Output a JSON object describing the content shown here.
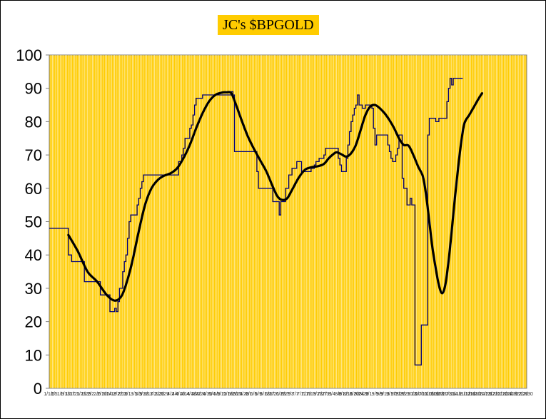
{
  "chart_data": {
    "type": "line",
    "title": "JC's $BPGOLD",
    "xlabel": "",
    "ylabel": "",
    "ylim": [
      0,
      100
    ],
    "yticks": [
      0,
      10,
      20,
      30,
      40,
      50,
      60,
      70,
      80,
      90,
      100
    ],
    "grid": "vertical",
    "legend": "none",
    "n_points": 300,
    "x_tick_labels": [
      "1/1/5",
      "1/5",
      "1/9",
      "1/13",
      "1/17",
      "1/21",
      "1/25",
      "1/29",
      "2/2",
      "2/6",
      "2/10",
      "2/14",
      "2/18",
      "2/22",
      "2/26",
      "3/1",
      "3/5",
      "3/9",
      "3/13",
      "3/17",
      "3/21",
      "3/25",
      "3/29",
      "4/2",
      "4/6",
      "4/10",
      "4/14",
      "4/18",
      "4/22",
      "4/26",
      "4/30",
      "5/4",
      "5/8",
      "5/12",
      "5/16",
      "5/20",
      "5/24",
      "5/28",
      "6/1",
      "6/5",
      "6/9",
      "6/13",
      "6/17",
      "6/21",
      "6/25",
      "6/29",
      "7/3",
      "7/7",
      "7/11",
      "7/15",
      "7/19",
      "7/23",
      "7/27",
      "7/31",
      "8/4",
      "8/8",
      "8/12",
      "8/16",
      "8/20",
      "8/24",
      "8/28",
      "9/1",
      "9/5",
      "9/9",
      "9/13",
      "9/17",
      "9/21",
      "9/25",
      "9/29",
      "10/3",
      "10/7",
      "10/11",
      "10/15",
      "10/19",
      "10/23",
      "10/27",
      "10/31",
      "11/4",
      "11/8",
      "11/12",
      "11/16",
      "11/20",
      "11/24",
      "11/28",
      "12/2",
      "12/6",
      "12/10",
      "12/14",
      "12/18",
      "12/22",
      "12/26",
      "12/30"
    ],
    "series": [
      {
        "color": "#000080",
        "style": "step",
        "points": [
          [
            0,
            48
          ],
          [
            11,
            48
          ],
          [
            12,
            40
          ],
          [
            13,
            40
          ],
          [
            14,
            38
          ],
          [
            21,
            38
          ],
          [
            22,
            32
          ],
          [
            31,
            32
          ],
          [
            32,
            28
          ],
          [
            37,
            28
          ],
          [
            38,
            23
          ],
          [
            40,
            23
          ],
          [
            41,
            24
          ],
          [
            42,
            23
          ],
          [
            43,
            26
          ],
          [
            44,
            30
          ],
          [
            45,
            30
          ],
          [
            46,
            35
          ],
          [
            47,
            38
          ],
          [
            48,
            40
          ],
          [
            49,
            45
          ],
          [
            50,
            50
          ],
          [
            51,
            52
          ],
          [
            54,
            52
          ],
          [
            55,
            55
          ],
          [
            56,
            57
          ],
          [
            57,
            60
          ],
          [
            58,
            62
          ],
          [
            59,
            64
          ],
          [
            80,
            64
          ],
          [
            81,
            68
          ],
          [
            83,
            70
          ],
          [
            84,
            72
          ],
          [
            85,
            75
          ],
          [
            87,
            75
          ],
          [
            88,
            78
          ],
          [
            89,
            79
          ],
          [
            90,
            82
          ],
          [
            91,
            85
          ],
          [
            92,
            87
          ],
          [
            95,
            87
          ],
          [
            96,
            88
          ],
          [
            113,
            88
          ],
          [
            114,
            89
          ],
          [
            115,
            88
          ],
          [
            116,
            71
          ],
          [
            129,
            71
          ],
          [
            130,
            65
          ],
          [
            131,
            60
          ],
          [
            139,
            60
          ],
          [
            140,
            56
          ],
          [
            143,
            56
          ],
          [
            144,
            52
          ],
          [
            145,
            56
          ],
          [
            147,
            56
          ],
          [
            148,
            60
          ],
          [
            149,
            60
          ],
          [
            150,
            64
          ],
          [
            151,
            64
          ],
          [
            152,
            66
          ],
          [
            154,
            66
          ],
          [
            155,
            68
          ],
          [
            157,
            68
          ],
          [
            158,
            65
          ],
          [
            163,
            65
          ],
          [
            164,
            66
          ],
          [
            165,
            66
          ],
          [
            166,
            67
          ],
          [
            167,
            68
          ],
          [
            169,
            69
          ],
          [
            171,
            69
          ],
          [
            172,
            70
          ],
          [
            173,
            72
          ],
          [
            180,
            72
          ],
          [
            181,
            69
          ],
          [
            182,
            67
          ],
          [
            183,
            65
          ],
          [
            185,
            65
          ],
          [
            186,
            69
          ],
          [
            187,
            73
          ],
          [
            188,
            77
          ],
          [
            189,
            80
          ],
          [
            190,
            82
          ],
          [
            191,
            84
          ],
          [
            192,
            85
          ],
          [
            193,
            88
          ],
          [
            194,
            85
          ],
          [
            196,
            84
          ],
          [
            197,
            84
          ],
          [
            198,
            85
          ],
          [
            201,
            85
          ],
          [
            202,
            84
          ],
          [
            203,
            78
          ],
          [
            204,
            73
          ],
          [
            205,
            76
          ],
          [
            211,
            76
          ],
          [
            212,
            73
          ],
          [
            213,
            71
          ],
          [
            214,
            69
          ],
          [
            215,
            68
          ],
          [
            217,
            70
          ],
          [
            218,
            72
          ],
          [
            219,
            76
          ],
          [
            220,
            76
          ],
          [
            221,
            63
          ],
          [
            222,
            60
          ],
          [
            224,
            55
          ],
          [
            225,
            55
          ],
          [
            226,
            57
          ],
          [
            227,
            55
          ],
          [
            229,
            7
          ],
          [
            232,
            7
          ],
          [
            233,
            19
          ],
          [
            236,
            19
          ],
          [
            237,
            76
          ],
          [
            238,
            81
          ],
          [
            241,
            81
          ],
          [
            242,
            80
          ],
          [
            244,
            81
          ],
          [
            248,
            81
          ],
          [
            249,
            86
          ],
          [
            250,
            90
          ],
          [
            251,
            93
          ],
          [
            252,
            91
          ],
          [
            253,
            93
          ],
          [
            259,
            93
          ]
        ]
      },
      {
        "color": "#000000",
        "style": "smooth",
        "points": [
          [
            12,
            46
          ],
          [
            18,
            41
          ],
          [
            24,
            35
          ],
          [
            30,
            32
          ],
          [
            36,
            28
          ],
          [
            41,
            26.3
          ],
          [
            45,
            27.5
          ],
          [
            48,
            31
          ],
          [
            52,
            38
          ],
          [
            56,
            47
          ],
          [
            60,
            55
          ],
          [
            64,
            60
          ],
          [
            68,
            62.5
          ],
          [
            72,
            63.8
          ],
          [
            76,
            64.5
          ],
          [
            80,
            66
          ],
          [
            84,
            69
          ],
          [
            88,
            73
          ],
          [
            92,
            78
          ],
          [
            96,
            82.5
          ],
          [
            100,
            86
          ],
          [
            104,
            88
          ],
          [
            108,
            88.7
          ],
          [
            111,
            88.8
          ],
          [
            114,
            88.5
          ],
          [
            117,
            85
          ],
          [
            120,
            81
          ],
          [
            124,
            76
          ],
          [
            128,
            72
          ],
          [
            132,
            68.5
          ],
          [
            136,
            65
          ],
          [
            140,
            60.5
          ],
          [
            143,
            57.5
          ],
          [
            146,
            56.5
          ],
          [
            149,
            57
          ],
          [
            152,
            59.5
          ],
          [
            156,
            63
          ],
          [
            160,
            65.5
          ],
          [
            164,
            66.3
          ],
          [
            168,
            66.6
          ],
          [
            172,
            67.3
          ],
          [
            175,
            69
          ],
          [
            178,
            70.3
          ],
          [
            180,
            70.8
          ],
          [
            183,
            70.2
          ],
          [
            186,
            69.5
          ],
          [
            189,
            70.5
          ],
          [
            192,
            73
          ],
          [
            195,
            77.5
          ],
          [
            198,
            82
          ],
          [
            201,
            84.5
          ],
          [
            204,
            85
          ],
          [
            207,
            84
          ],
          [
            210,
            82.5
          ],
          [
            213,
            80.5
          ],
          [
            216,
            78
          ],
          [
            219,
            75
          ],
          [
            222,
            73
          ],
          [
            225,
            72.8
          ],
          [
            228,
            70
          ],
          [
            231,
            66.5
          ],
          [
            234,
            63.5
          ],
          [
            236,
            58
          ],
          [
            238,
            50
          ],
          [
            240,
            42
          ],
          [
            242,
            36
          ],
          [
            244,
            31
          ],
          [
            246,
            28.5
          ],
          [
            248,
            31
          ],
          [
            250,
            38
          ],
          [
            252,
            47
          ],
          [
            254,
            57
          ],
          [
            256,
            66
          ],
          [
            258,
            74
          ],
          [
            260,
            79.5
          ],
          [
            263,
            82
          ],
          [
            266,
            84.5
          ],
          [
            269,
            87
          ],
          [
            271,
            88.5
          ]
        ]
      }
    ]
  }
}
